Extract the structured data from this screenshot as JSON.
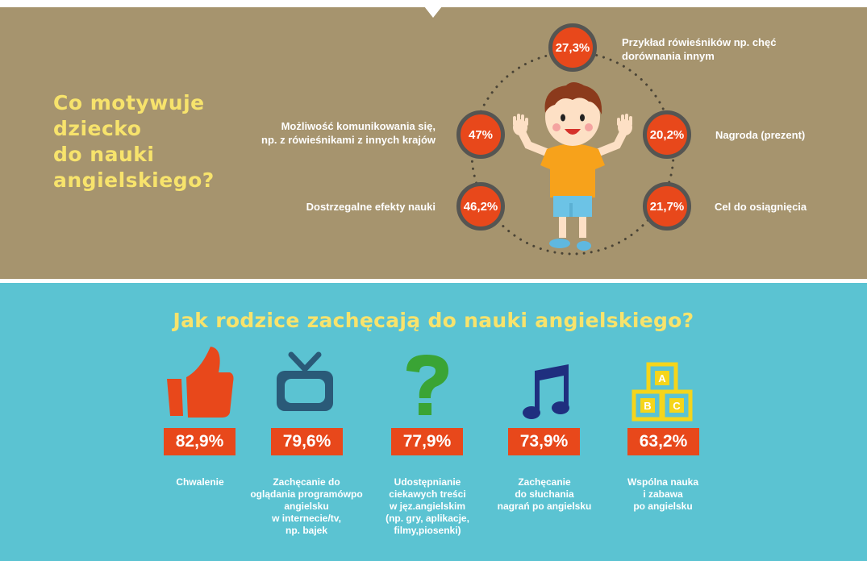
{
  "motivation": {
    "title_lines": [
      "Co motywuje",
      "dziecko",
      "do nauki",
      "angielskiego?"
    ],
    "items": [
      {
        "value": "27,3%",
        "label_lines": [
          "Przykład rówieśników np. chęć",
          "dorównania innym"
        ]
      },
      {
        "value": "47%",
        "label_lines": [
          "Możliwość komunikowania się,",
          "np. z rówieśnikami z innych krajów"
        ]
      },
      {
        "value": "20,2%",
        "label_lines": [
          "Nagroda (prezent)"
        ]
      },
      {
        "value": "46,2%",
        "label_lines": [
          "Dostrzegalne efekty nauki"
        ]
      },
      {
        "value": "21,7%",
        "label_lines": [
          "Cel do osiągnięcia"
        ]
      }
    ]
  },
  "encouragement": {
    "title": "Jak rodzice zachęcają do nauki angielskiego?",
    "items": [
      {
        "icon": "thumbs-up-icon",
        "value": "82,9%",
        "caption_lines": [
          "Chwalenie"
        ]
      },
      {
        "icon": "tv-icon",
        "value": "79,6%",
        "caption_lines": [
          "Zachęcanie do",
          "oglądania programówpo",
          "angielsku",
          "w internecie/tv,",
          "np. bajek"
        ]
      },
      {
        "icon": "question-mark-icon",
        "value": "77,9%",
        "caption_lines": [
          "Udostępnianie",
          "ciekawych treści",
          "w jęz.angielskim",
          "(np. gry, aplikacje,",
          "filmy,piosenki)"
        ]
      },
      {
        "icon": "music-note-icon",
        "value": "73,9%",
        "caption_lines": [
          "Zachęcanie",
          "do słuchania",
          "nagrań po angielsku"
        ]
      },
      {
        "icon": "abc-blocks-icon",
        "value": "63,2%",
        "caption_lines": [
          "Wspólna nauka",
          "i zabawa",
          "po angielsku"
        ]
      }
    ],
    "blocks_letters": [
      "A",
      "B",
      "C"
    ]
  },
  "colors": {
    "top_bg": "#a6946e",
    "bottom_bg": "#5bc3d2",
    "accent_red": "#e8481b",
    "title_yellow": "#f7e36c",
    "tv_blue": "#2a5a78",
    "question_green": "#3aa435",
    "note_navy": "#1f2f7f",
    "blocks_yellow": "#f5d51a"
  }
}
